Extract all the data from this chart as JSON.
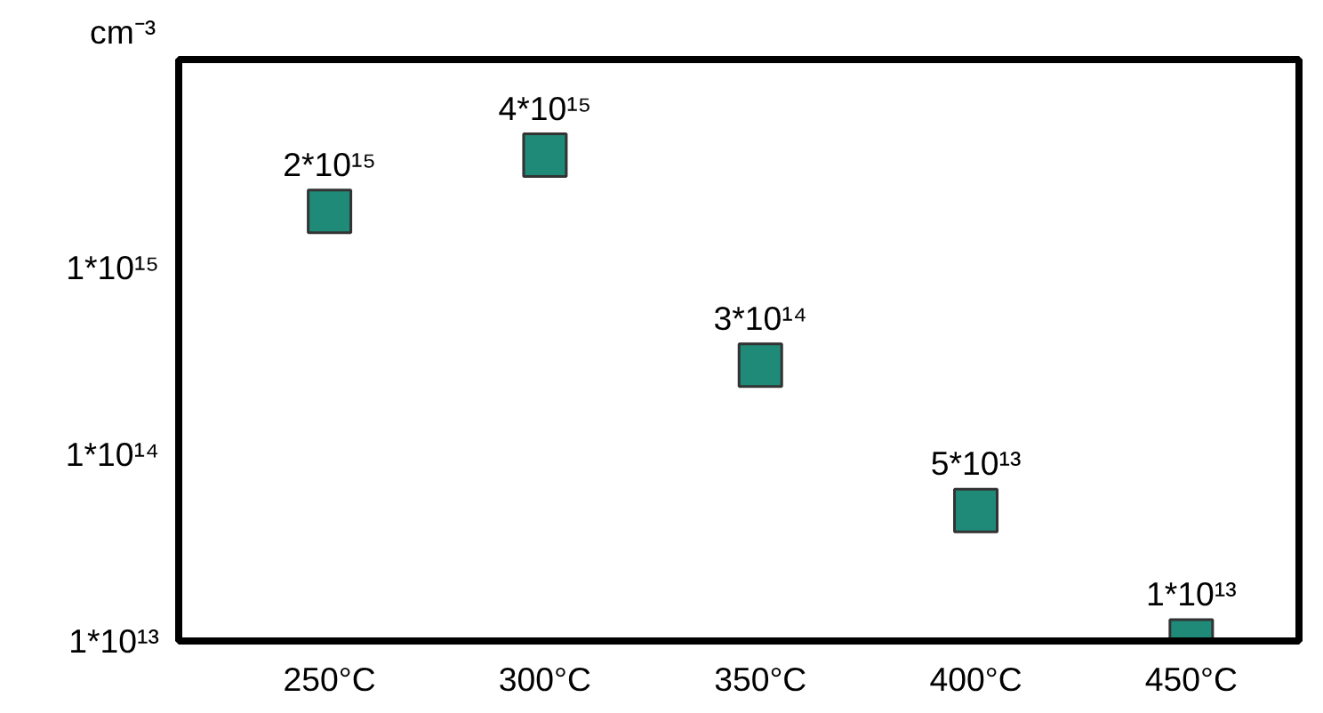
{
  "chart_data": {
    "type": "scatter",
    "ylabel": "cm⁻³",
    "categories": [
      "250°C",
      "300°C",
      "350°C",
      "400°C",
      "450°C"
    ],
    "series": [
      {
        "color": "#1f8a78",
        "values": [
          2000000000000000.0,
          4000000000000000.0,
          300000000000000.0,
          50000000000000.0,
          10000000000000.0
        ],
        "value_labels": [
          "2*10¹⁵",
          "4*10¹⁵",
          "3*10¹⁴",
          "5*10¹³",
          "1*10¹³"
        ]
      }
    ],
    "marker": "square",
    "log": "y",
    "grid": false,
    "ylim": [
      10000000000000.0,
      1.3e+16
    ],
    "yticks": [
      {
        "value": 10000000000000.0,
        "label": "1*10¹³"
      },
      {
        "value": 100000000000000.0,
        "label": "1*10¹⁴"
      },
      {
        "value": 1000000000000000.0,
        "label": "1*10¹⁵"
      }
    ]
  }
}
